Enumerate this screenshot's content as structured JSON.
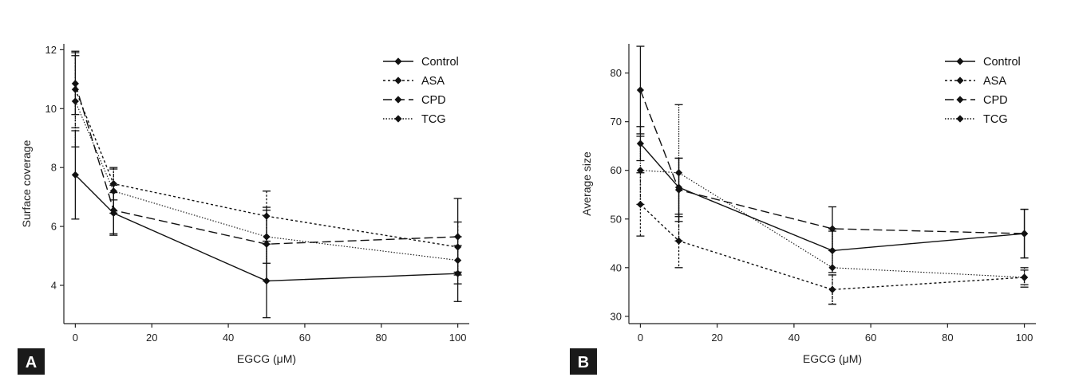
{
  "chart_data": [
    {
      "type": "line",
      "panel_label": "A",
      "xlabel": "EGCG (μM)",
      "ylabel": "Surface coverage",
      "xlim": [
        -3,
        103
      ],
      "ylim": [
        2.7,
        12.2
      ],
      "xticks": [
        0,
        20,
        40,
        60,
        80,
        100
      ],
      "yticks": [
        4,
        6,
        8,
        10,
        12
      ],
      "x": [
        0,
        10,
        50,
        100
      ],
      "legend_position": "top-right",
      "grid": false,
      "series": [
        {
          "name": "Control",
          "style": "solid",
          "values": [
            7.75,
            6.45,
            4.15,
            4.4
          ],
          "err": [
            1.5,
            0.7,
            1.25,
            0.95
          ]
        },
        {
          "name": "ASA",
          "style": "dotted",
          "values": [
            10.65,
            7.45,
            6.35,
            5.3
          ],
          "err": [
            1.3,
            0.55,
            0.85,
            0.85
          ]
        },
        {
          "name": "CPD",
          "style": "dashed",
          "values": [
            10.85,
            6.55,
            5.4,
            5.65
          ],
          "err": [
            1.05,
            0.85,
            1.25,
            1.3
          ]
        },
        {
          "name": "TCG",
          "style": "finedot",
          "values": [
            10.25,
            7.2,
            5.65,
            4.85
          ],
          "err": [
            1.55,
            0.75,
            0.9,
            0.8
          ]
        }
      ]
    },
    {
      "type": "line",
      "panel_label": "B",
      "xlabel": "EGCG (μM)",
      "ylabel": "Average size",
      "xlim": [
        -3,
        103
      ],
      "ylim": [
        28.5,
        86
      ],
      "xticks": [
        0,
        20,
        40,
        60,
        80,
        100
      ],
      "yticks": [
        30,
        40,
        50,
        60,
        70,
        80
      ],
      "x": [
        0,
        10,
        50,
        100
      ],
      "legend_position": "top-right",
      "grid": false,
      "series": [
        {
          "name": "Control",
          "style": "solid",
          "values": [
            65.5,
            56.5,
            43.5,
            47.0
          ],
          "err": [
            3.5,
            6.0,
            4.5,
            5.0
          ]
        },
        {
          "name": "ASA",
          "style": "dotted",
          "values": [
            53.0,
            45.5,
            35.5,
            38.0
          ],
          "err": [
            6.5,
            5.5,
            3.0,
            1.5
          ]
        },
        {
          "name": "CPD",
          "style": "dashed",
          "values": [
            76.5,
            56.0,
            48.0,
            47.0
          ],
          "err": [
            9.0,
            6.5,
            4.5,
            5.0
          ]
        },
        {
          "name": "TCG",
          "style": "finedot",
          "values": [
            60.0,
            59.5,
            40.0,
            38.0
          ],
          "err": [
            7.0,
            14.0,
            7.5,
            2.0
          ]
        }
      ]
    }
  ]
}
